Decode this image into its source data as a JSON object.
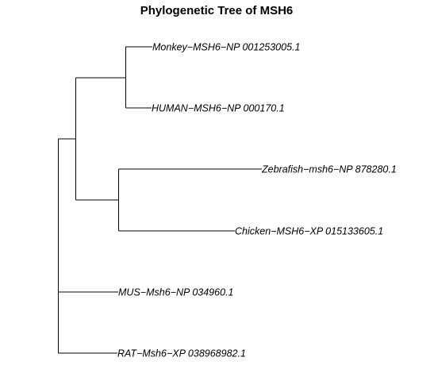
{
  "title": "Phylogenetic Tree of MSH6",
  "tree": {
    "leaves": [
      {
        "id": "monkey",
        "label": "Monkey−MSH6−NP 001253005.1"
      },
      {
        "id": "human",
        "label": "HUMAN−MSH6−NP 000170.1"
      },
      {
        "id": "zebrafish",
        "label": "Zebrafish−msh6−NP 878280.1"
      },
      {
        "id": "chicken",
        "label": "Chicken−MSH6−XP 015133605.1"
      },
      {
        "id": "mus",
        "label": "MUS−Msh6−NP 034960.1"
      },
      {
        "id": "rat",
        "label": "RAT−Msh6−XP 038968982.1"
      }
    ]
  },
  "colors": {
    "line": "#000000",
    "text": "#000000",
    "background": "#ffffff"
  }
}
